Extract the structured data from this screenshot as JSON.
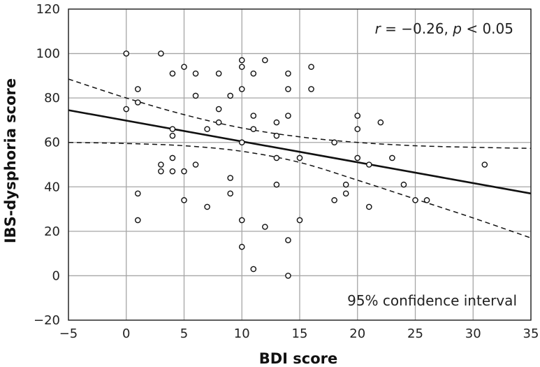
{
  "chart_data": {
    "type": "scatter",
    "title": "",
    "xlabel": "BDI score",
    "ylabel": "IBS-dysphoria score",
    "xlim": [
      -5,
      35
    ],
    "ylim": [
      -20,
      120
    ],
    "xticks": [
      -5,
      0,
      5,
      10,
      15,
      20,
      25,
      30,
      35
    ],
    "yticks": [
      -20,
      0,
      20,
      40,
      60,
      80,
      100,
      120
    ],
    "xtick_labels": [
      "−5",
      "0",
      "5",
      "10",
      "15",
      "20",
      "25",
      "30",
      "35"
    ],
    "ytick_labels": [
      "−20",
      "0",
      "20",
      "40",
      "60",
      "80",
      "100",
      "120"
    ],
    "grid": true,
    "points": [
      {
        "x": 0,
        "y": 100
      },
      {
        "x": 0,
        "y": 75
      },
      {
        "x": 1,
        "y": 84
      },
      {
        "x": 1,
        "y": 78
      },
      {
        "x": 1,
        "y": 37
      },
      {
        "x": 1,
        "y": 25
      },
      {
        "x": 3,
        "y": 100
      },
      {
        "x": 3,
        "y": 50
      },
      {
        "x": 3,
        "y": 47
      },
      {
        "x": 4,
        "y": 91
      },
      {
        "x": 4,
        "y": 66
      },
      {
        "x": 4,
        "y": 63
      },
      {
        "x": 4,
        "y": 53
      },
      {
        "x": 4,
        "y": 47
      },
      {
        "x": 5,
        "y": 94
      },
      {
        "x": 5,
        "y": 47
      },
      {
        "x": 5,
        "y": 34
      },
      {
        "x": 6,
        "y": 91
      },
      {
        "x": 6,
        "y": 81
      },
      {
        "x": 6,
        "y": 50
      },
      {
        "x": 7,
        "y": 66
      },
      {
        "x": 7,
        "y": 31
      },
      {
        "x": 8,
        "y": 91
      },
      {
        "x": 8,
        "y": 75
      },
      {
        "x": 8,
        "y": 69
      },
      {
        "x": 9,
        "y": 81
      },
      {
        "x": 9,
        "y": 44
      },
      {
        "x": 9,
        "y": 37
      },
      {
        "x": 10,
        "y": 97
      },
      {
        "x": 10,
        "y": 94
      },
      {
        "x": 10,
        "y": 84
      },
      {
        "x": 10,
        "y": 60
      },
      {
        "x": 10,
        "y": 25
      },
      {
        "x": 10,
        "y": 13
      },
      {
        "x": 11,
        "y": 91
      },
      {
        "x": 11,
        "y": 72
      },
      {
        "x": 11,
        "y": 66
      },
      {
        "x": 11,
        "y": 3
      },
      {
        "x": 12,
        "y": 97
      },
      {
        "x": 12,
        "y": 22
      },
      {
        "x": 13,
        "y": 69
      },
      {
        "x": 13,
        "y": 63
      },
      {
        "x": 13,
        "y": 53
      },
      {
        "x": 13,
        "y": 41
      },
      {
        "x": 14,
        "y": 91
      },
      {
        "x": 14,
        "y": 84
      },
      {
        "x": 14,
        "y": 72
      },
      {
        "x": 14,
        "y": 16
      },
      {
        "x": 14,
        "y": 0
      },
      {
        "x": 15,
        "y": 53
      },
      {
        "x": 15,
        "y": 25
      },
      {
        "x": 16,
        "y": 94
      },
      {
        "x": 16,
        "y": 84
      },
      {
        "x": 18,
        "y": 60
      },
      {
        "x": 18,
        "y": 34
      },
      {
        "x": 19,
        "y": 41
      },
      {
        "x": 19,
        "y": 37
      },
      {
        "x": 20,
        "y": 72
      },
      {
        "x": 20,
        "y": 66
      },
      {
        "x": 20,
        "y": 53
      },
      {
        "x": 21,
        "y": 50
      },
      {
        "x": 21,
        "y": 31
      },
      {
        "x": 22,
        "y": 69
      },
      {
        "x": 23,
        "y": 53
      },
      {
        "x": 24,
        "y": 41
      },
      {
        "x": 25,
        "y": 34
      },
      {
        "x": 26,
        "y": 34
      },
      {
        "x": 31,
        "y": 50
      }
    ],
    "regression_line": {
      "x": [
        -5,
        35
      ],
      "y": [
        74.5,
        37
      ]
    },
    "confidence_interval": {
      "label": "95% confidence interval",
      "upper": {
        "x": [
          -5,
          0,
          5,
          10,
          15,
          20,
          25,
          30,
          35
        ],
        "y": [
          88.5,
          80,
          72.5,
          66.5,
          62.5,
          60,
          58.5,
          57.8,
          57.3
        ]
      },
      "lower": {
        "x": [
          -5,
          0,
          5,
          10,
          15,
          20,
          25,
          30,
          35
        ],
        "y": [
          60,
          59.5,
          58.5,
          56,
          51,
          43,
          34.5,
          26,
          17
        ]
      }
    },
    "annotations": {
      "stat_r": "r",
      "stat_r_value": " = −0.26, ",
      "stat_p": "p",
      "stat_p_value": " < 0.05",
      "ci_label": "95% confidence interval"
    }
  }
}
